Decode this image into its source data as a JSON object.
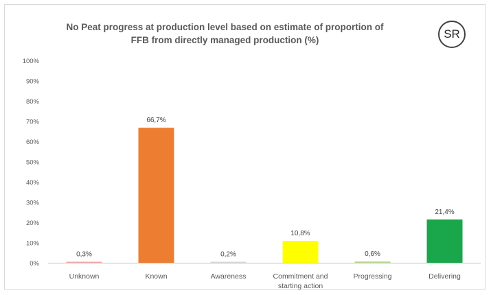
{
  "chart_data": {
    "type": "bar",
    "title_line1": "No Peat progress at production level based on estimate of proportion of",
    "title_line2": "FFB from directly managed production (%)",
    "categories": [
      [
        "Unknown"
      ],
      [
        "Known"
      ],
      [
        "Awareness"
      ],
      [
        "Commitment and",
        "starting action"
      ],
      [
        "Progressing"
      ],
      [
        "Delivering"
      ]
    ],
    "values": [
      0.3,
      66.7,
      0.2,
      10.8,
      0.6,
      21.4
    ],
    "data_labels": [
      "0,3%",
      "66,7%",
      "0,2%",
      "10,8%",
      "0,6%",
      "21,4%"
    ],
    "colors": [
      "#f4a6a6",
      "#ed7d31",
      "#d9d9d9",
      "#ffff00",
      "#b8d98a",
      "#1aa64a"
    ],
    "ylim": [
      0,
      100
    ],
    "yticks": [
      "0%",
      "10%",
      "20%",
      "30%",
      "40%",
      "50%",
      "60%",
      "70%",
      "80%",
      "90%",
      "100%"
    ],
    "grid": false,
    "legend": "none"
  },
  "badge": {
    "text": "SR"
  }
}
